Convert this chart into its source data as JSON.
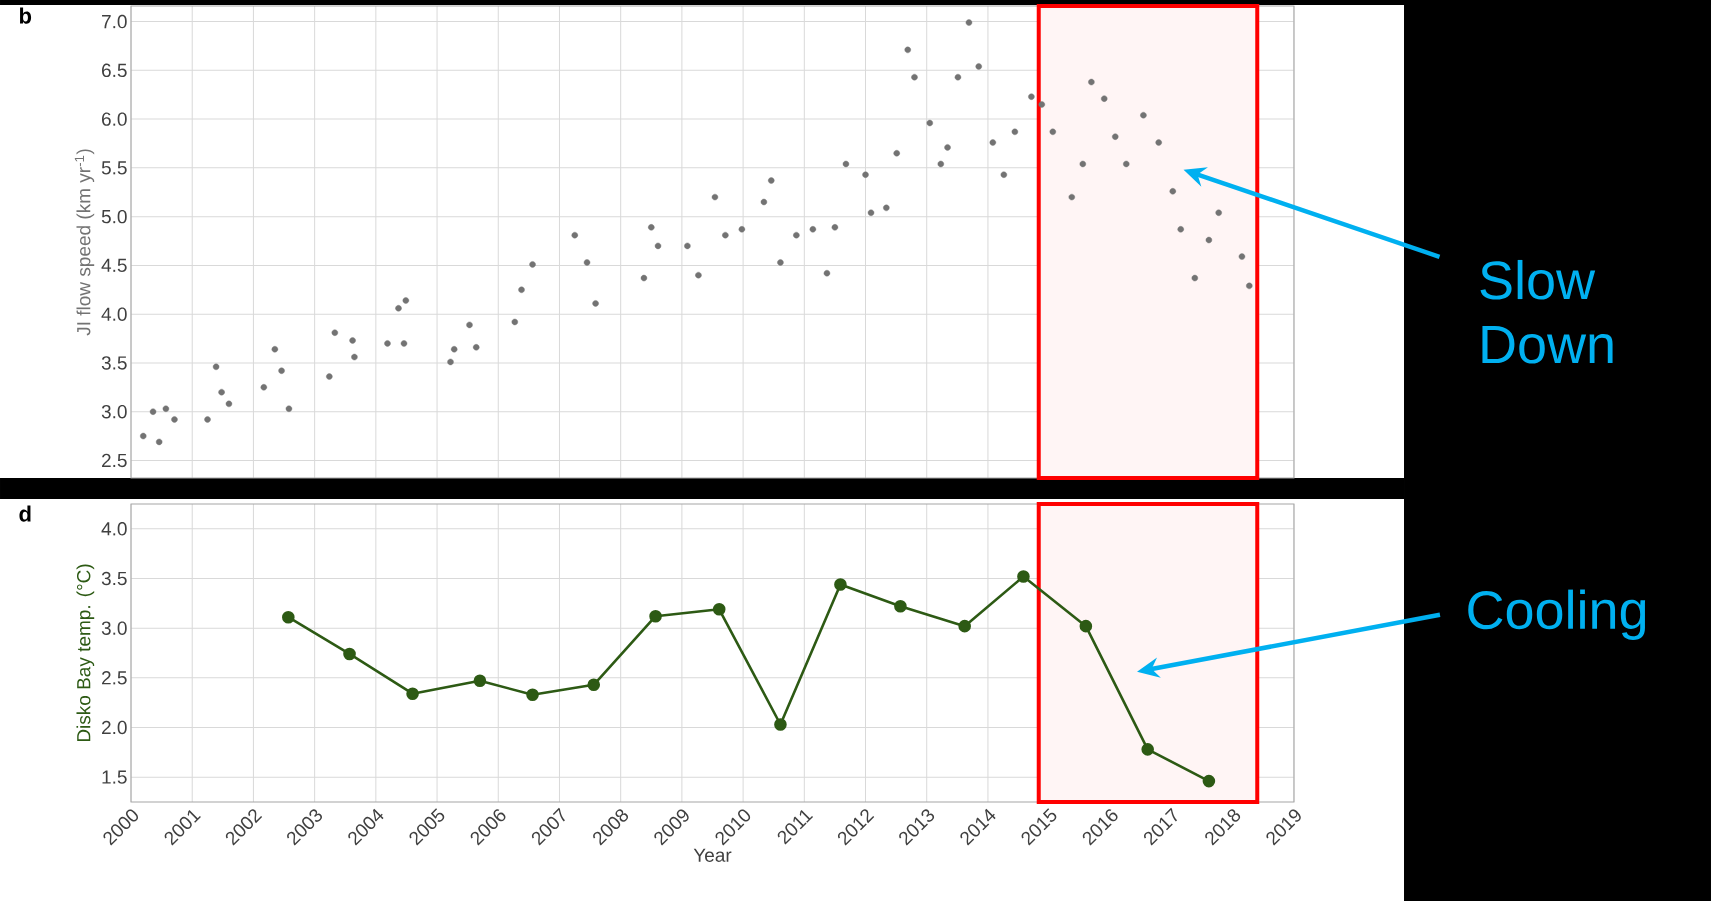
{
  "chart_data": [
    {
      "type": "scatter",
      "title": "b",
      "ylabel": "JI flow speed (km yr$^{-1}$)",
      "color": "#737373",
      "marker": "circle",
      "x": [
        2000.2,
        2000.36,
        2000.46,
        2000.57,
        2000.71,
        2001.25,
        2001.39,
        2001.48,
        2001.6,
        2002.17,
        2002.35,
        2002.46,
        2002.58,
        2003.24,
        2003.33,
        2003.62,
        2003.65,
        2004.19,
        2004.37,
        2004.49,
        2004.46,
        2005.22,
        2005.28,
        2005.53,
        2005.64,
        2006.27,
        2006.38,
        2006.56,
        2007.25,
        2007.45,
        2007.59,
        2008.38,
        2008.5,
        2008.61,
        2009.09,
        2009.27,
        2009.54,
        2009.71,
        2009.98,
        2010.34,
        2010.46,
        2010.61,
        2010.87,
        2011.14,
        2011.37,
        2011.5,
        2011.68,
        2012.0,
        2012.09,
        2012.34,
        2012.51,
        2012.69,
        2012.8,
        2013.05,
        2013.23,
        2013.34,
        2013.51,
        2013.69,
        2013.85,
        2014.08,
        2014.26,
        2014.44,
        2014.71,
        2014.88,
        2015.06,
        2015.37,
        2015.55,
        2015.69,
        2015.9,
        2016.08,
        2016.26,
        2016.54,
        2016.79,
        2017.02,
        2017.15,
        2017.38,
        2017.61,
        2017.77,
        2018.15,
        2018.27
      ],
      "values": [
        2.75,
        3.0,
        2.69,
        3.03,
        2.92,
        2.92,
        3.46,
        3.2,
        3.08,
        3.25,
        3.64,
        3.42,
        3.03,
        3.36,
        3.81,
        3.73,
        3.56,
        3.7,
        4.06,
        4.14,
        3.7,
        3.51,
        3.64,
        3.89,
        3.66,
        3.92,
        4.25,
        4.51,
        4.81,
        4.53,
        4.11,
        4.37,
        4.89,
        4.7,
        4.7,
        4.4,
        5.2,
        4.81,
        4.87,
        5.15,
        5.37,
        4.53,
        4.81,
        4.87,
        4.42,
        4.89,
        5.54,
        5.43,
        5.04,
        5.09,
        5.65,
        6.71,
        6.43,
        5.96,
        5.54,
        5.71,
        6.43,
        6.99,
        6.54,
        5.76,
        5.43,
        5.87,
        6.23,
        6.15,
        5.87,
        5.2,
        5.54,
        6.38,
        6.21,
        5.82,
        5.54,
        6.04,
        5.76,
        5.26,
        4.87,
        4.37,
        4.76,
        5.04,
        4.59,
        4.29
      ],
      "xlim": [
        2000,
        2019
      ],
      "ylim": [
        2.32,
        7.16
      ],
      "xticks": [
        2000,
        2001,
        2002,
        2003,
        2004,
        2005,
        2006,
        2007,
        2008,
        2009,
        2010,
        2011,
        2012,
        2013,
        2014,
        2015,
        2016,
        2017,
        2018,
        2019
      ],
      "yticks": [
        {
          "value": 2.5,
          "label": "2.5"
        },
        {
          "value": 3,
          "label": "3.0"
        },
        {
          "value": 3.5,
          "label": "3.5"
        },
        {
          "value": 4,
          "label": "4.0"
        },
        {
          "value": 4.5,
          "label": "4.5"
        },
        {
          "value": 5,
          "label": "5.0"
        },
        {
          "value": 5.5,
          "label": "5.5"
        },
        {
          "value": 6,
          "label": "6.0"
        },
        {
          "value": 6.5,
          "label": "6.5"
        },
        {
          "value": 7,
          "label": "7.0"
        }
      ],
      "grid": true,
      "tick_labels": "y",
      "bands": [
        {
          "axis": "x",
          "from": 2014.83,
          "to": 2018.4,
          "color": "#ff0000"
        }
      ],
      "annotations": [
        "Slow Down"
      ]
    },
    {
      "type": "line",
      "title": "d",
      "xlabel": "Year",
      "ylabel": "Disko Bay temp. (°C)",
      "color": "#2d5a14",
      "marker": "circle",
      "line_style": "solid",
      "x": [
        2002.57,
        2003.57,
        2004.6,
        2005.7,
        2006.56,
        2007.56,
        2008.57,
        2009.61,
        2010.61,
        2011.59,
        2012.57,
        2013.62,
        2014.58,
        2015.6,
        2016.61,
        2017.61
      ],
      "values": [
        3.11,
        2.74,
        2.34,
        2.47,
        2.33,
        2.43,
        3.12,
        3.19,
        2.03,
        3.44,
        3.22,
        3.02,
        3.52,
        3.02,
        1.78,
        1.46
      ],
      "xlim": [
        2000,
        2019
      ],
      "ylim": [
        1.25,
        4.25
      ],
      "xticks": [
        2000,
        2001,
        2002,
        2003,
        2004,
        2005,
        2006,
        2007,
        2008,
        2009,
        2010,
        2011,
        2012,
        2013,
        2014,
        2015,
        2016,
        2017,
        2018,
        2019
      ],
      "yticks": [
        {
          "value": 1.5,
          "label": "1.5"
        },
        {
          "value": 2,
          "label": "2.0"
        },
        {
          "value": 2.5,
          "label": "2.5"
        },
        {
          "value": 3,
          "label": "3.0"
        },
        {
          "value": 3.5,
          "label": "3.5"
        },
        {
          "value": 4,
          "label": "4.0"
        }
      ],
      "grid": true,
      "bands": [
        {
          "axis": "x",
          "from": 2014.83,
          "to": 2018.4,
          "color": "#ff0000"
        }
      ],
      "annotations": [
        "Cooling"
      ]
    }
  ]
}
